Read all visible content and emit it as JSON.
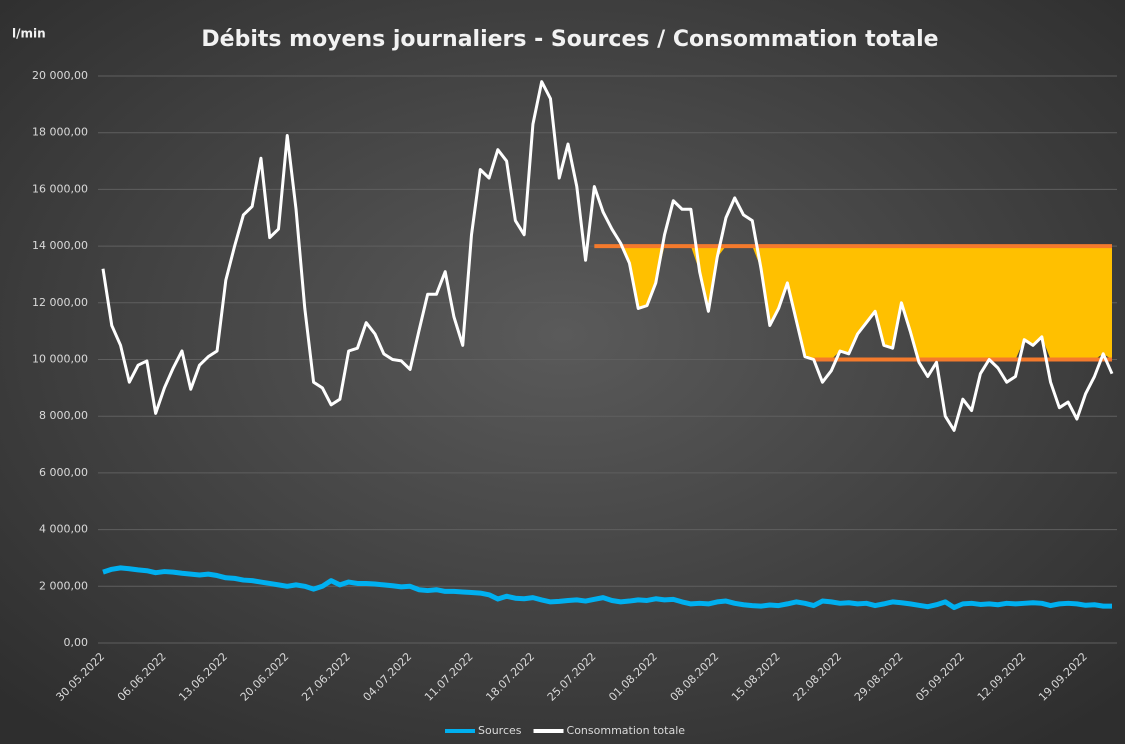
{
  "chart_data": {
    "type": "line",
    "title": "Débits moyens journaliers - Sources / Consommation totale",
    "y_axis_label": "l/min",
    "categories": [
      "30.05.2022",
      null,
      null,
      null,
      null,
      null,
      null,
      "06.06.2022",
      null,
      null,
      null,
      null,
      null,
      null,
      "13.06.2022",
      null,
      null,
      null,
      null,
      null,
      null,
      "20.06.2022",
      null,
      null,
      null,
      null,
      null,
      null,
      "27.06.2022",
      null,
      null,
      null,
      null,
      null,
      null,
      "04.07.2022",
      null,
      null,
      null,
      null,
      null,
      null,
      "11.07.2022",
      null,
      null,
      null,
      null,
      null,
      null,
      "18.07.2022",
      null,
      null,
      null,
      null,
      null,
      null,
      "25.07.2022",
      null,
      null,
      null,
      null,
      null,
      null,
      "01.08.2022",
      null,
      null,
      null,
      null,
      null,
      null,
      "08.08.2022",
      null,
      null,
      null,
      null,
      null,
      null,
      "15.08.2022",
      null,
      null,
      null,
      null,
      null,
      null,
      "22.08.2022",
      null,
      null,
      null,
      null,
      null,
      null,
      "29.08.2022",
      null,
      null,
      null,
      null,
      null,
      null,
      "05.09.2022",
      null,
      null,
      null,
      null,
      null,
      null,
      "12.09.2022",
      null,
      null,
      null,
      null,
      null,
      null,
      "19.09.2022",
      null,
      null,
      null
    ],
    "series": [
      {
        "name": "Sources",
        "color": "#00b0f0",
        "width": 5,
        "values": [
          2500,
          2600,
          2650,
          2620,
          2580,
          2550,
          2480,
          2520,
          2500,
          2460,
          2430,
          2400,
          2430,
          2380,
          2300,
          2280,
          2220,
          2200,
          2150,
          2100,
          2050,
          2000,
          2050,
          2000,
          1900,
          2000,
          2200,
          2050,
          2150,
          2100,
          2100,
          2080,
          2050,
          2020,
          1980,
          2000,
          1880,
          1850,
          1880,
          1820,
          1820,
          1800,
          1780,
          1760,
          1700,
          1550,
          1650,
          1580,
          1560,
          1600,
          1520,
          1450,
          1470,
          1500,
          1520,
          1480,
          1540,
          1600,
          1500,
          1450,
          1480,
          1520,
          1500,
          1560,
          1520,
          1540,
          1450,
          1380,
          1400,
          1380,
          1450,
          1480,
          1400,
          1350,
          1320,
          1300,
          1340,
          1320,
          1380,
          1450,
          1400,
          1320,
          1480,
          1450,
          1400,
          1420,
          1380,
          1400,
          1320,
          1380,
          1450,
          1420,
          1380,
          1330,
          1280,
          1350,
          1450,
          1250,
          1380,
          1400,
          1360,
          1380,
          1350,
          1400,
          1380,
          1400,
          1420,
          1400,
          1320,
          1380,
          1400,
          1380,
          1330,
          1350,
          1300,
          1300
        ]
      },
      {
        "name": "Consommation totale",
        "color": "#ffffff",
        "width": 3,
        "values": [
          13200,
          11200,
          10500,
          9200,
          9800,
          9950,
          8100,
          9000,
          9700,
          10300,
          8950,
          9800,
          10100,
          10300,
          12800,
          14000,
          15100,
          15400,
          17100,
          14300,
          14600,
          17900,
          15300,
          11800,
          9200,
          9000,
          8400,
          8600,
          10300,
          10400,
          11300,
          10900,
          10200,
          10000,
          9950,
          9650,
          11000,
          12300,
          12300,
          13100,
          11500,
          10500,
          14400,
          16700,
          16400,
          17400,
          17000,
          14900,
          14400,
          18300,
          19800,
          19200,
          16400,
          17600,
          16100,
          13500,
          16100,
          15200,
          14600,
          14100,
          13400,
          11800,
          11900,
          12700,
          14400,
          15600,
          15300,
          15300,
          13100,
          11700,
          13600,
          15000,
          15700,
          15100,
          14900,
          13200,
          11200,
          11800,
          12700,
          11400,
          10100,
          10000,
          9200,
          9600,
          10300,
          10200,
          10900,
          11300,
          11700,
          10500,
          10400,
          12000,
          11000,
          9900,
          9400,
          9900,
          8000,
          7500,
          8600,
          8200,
          9500,
          10000,
          9700,
          9200,
          9400,
          10700,
          10500,
          10800,
          9200,
          8300,
          8500,
          7900,
          8800,
          9400,
          10200,
          9500
        ]
      }
    ],
    "reference_lines": [
      {
        "value": 14000,
        "from": 56,
        "color": "#f47a2c"
      },
      {
        "value": 10000,
        "from": 81,
        "color": "#f47a2c"
      }
    ],
    "fill_color": "#ffc000",
    "ylim": [
      0,
      20000
    ],
    "yticks": [
      {
        "value": 0,
        "label": "0,00"
      },
      {
        "value": 2000,
        "label": "2 000,00"
      },
      {
        "value": 4000,
        "label": "4 000,00"
      },
      {
        "value": 6000,
        "label": "6 000,00"
      },
      {
        "value": 8000,
        "label": "8 000,00"
      },
      {
        "value": 10000,
        "label": "10 000,00"
      },
      {
        "value": 12000,
        "label": "12 000,00"
      },
      {
        "value": 14000,
        "label": "14 000,00"
      },
      {
        "value": 16000,
        "label": "16 000,00"
      },
      {
        "value": 18000,
        "label": "18 000,00"
      },
      {
        "value": 20000,
        "label": "20 000,00"
      }
    ],
    "grid": true,
    "legend": "bottom"
  }
}
